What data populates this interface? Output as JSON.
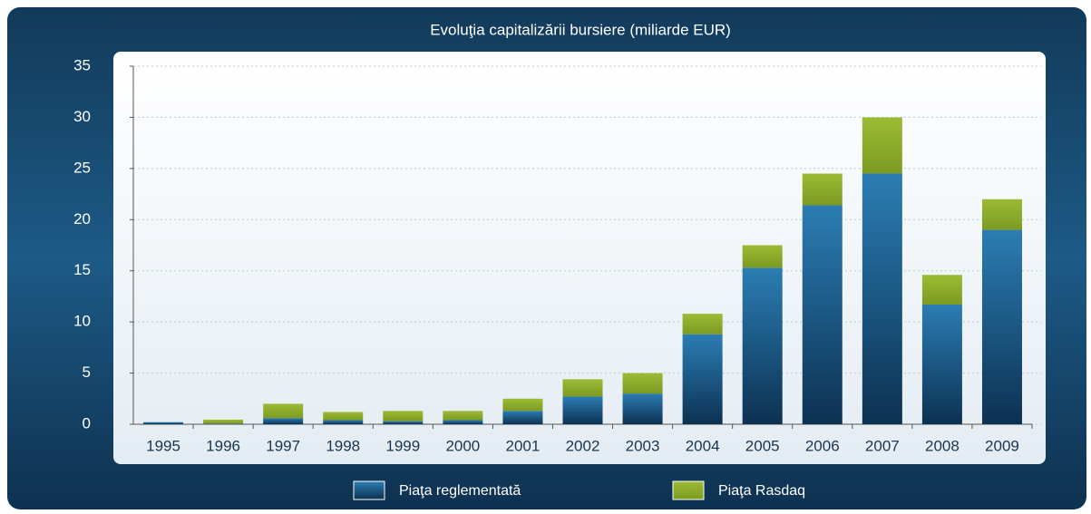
{
  "chart_data": {
    "type": "stacked_bar",
    "title": "Evoluţia capitalizării bursiere (miliarde EUR)",
    "categories": [
      "1995",
      "1996",
      "1997",
      "1998",
      "1999",
      "2000",
      "2001",
      "2002",
      "2003",
      "2004",
      "2005",
      "2006",
      "2007",
      "2008",
      "2009"
    ],
    "series": [
      {
        "name": "Piaţa reglementată",
        "color": "#1a5a8a",
        "values": [
          0.2,
          0.05,
          0.6,
          0.4,
          0.3,
          0.4,
          1.3,
          2.7,
          3.0,
          8.8,
          15.3,
          21.4,
          24.5,
          11.7,
          19.0
        ]
      },
      {
        "name": "Piaţa Rasdaq",
        "color": "#8fae2a",
        "values": [
          0,
          0.4,
          1.4,
          0.8,
          1.0,
          0.9,
          1.2,
          1.7,
          2.0,
          2.0,
          2.2,
          3.1,
          5.5,
          2.9,
          3.0
        ]
      }
    ],
    "ylim": [
      0,
      35
    ],
    "yticks": [
      0,
      5,
      10,
      15,
      20,
      25,
      30,
      35
    ],
    "grid": true
  }
}
